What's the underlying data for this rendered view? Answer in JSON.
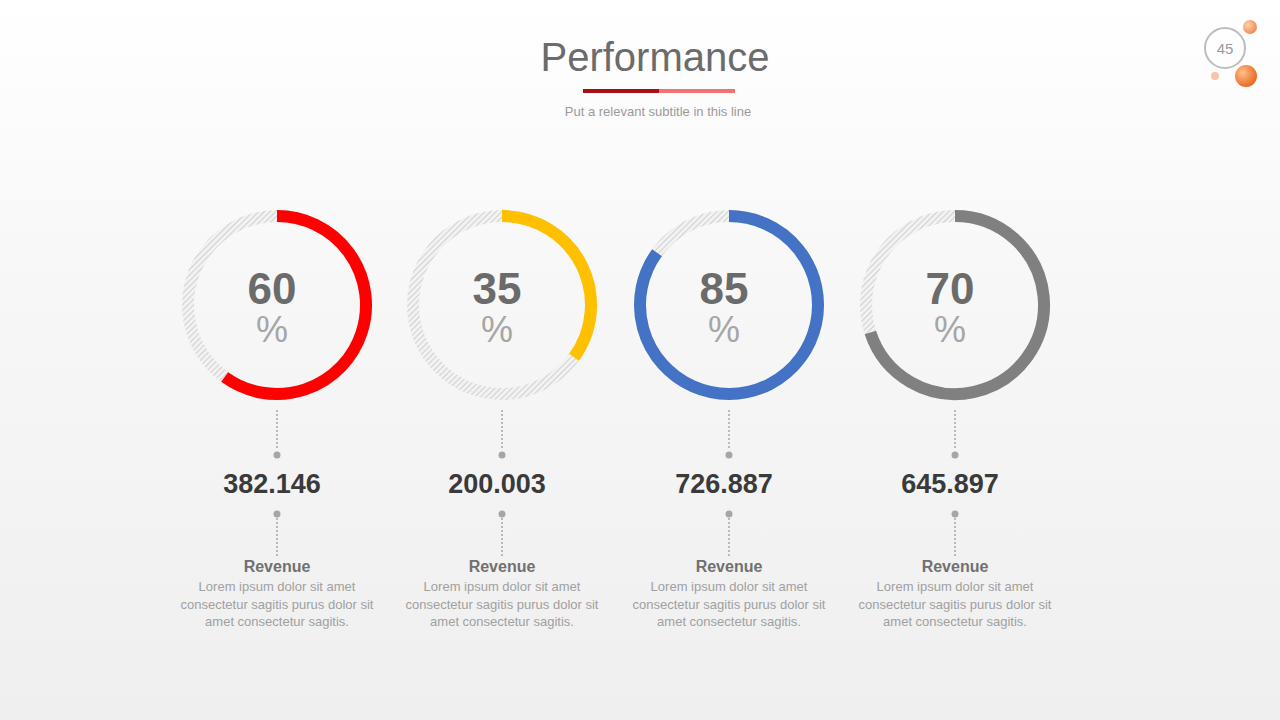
{
  "header": {
    "title": "Performance",
    "subtitle": "Put a relevant subtitle in this line",
    "page": "45"
  },
  "chart_data": [
    {
      "type": "donut",
      "values": [
        60
      ],
      "value_labels": [
        "60%"
      ],
      "color": "#ff0000",
      "ylim": [
        0,
        100
      ],
      "data_labels": true,
      "annotations": [
        "382.146"
      ],
      "title": "Revenue",
      "subtitle": "Lorem ipsum dolor sit amet consectetur sagitis purus dolor sit amet consectetur sagitis."
    },
    {
      "type": "donut",
      "values": [
        35
      ],
      "value_labels": [
        "35%"
      ],
      "color": "#ffc000",
      "ylim": [
        0,
        100
      ],
      "data_labels": true,
      "annotations": [
        "200.003"
      ],
      "title": "Revenue",
      "subtitle": "Lorem ipsum dolor sit amet consectetur sagitis purus dolor sit amet consectetur sagitis."
    },
    {
      "type": "donut",
      "values": [
        85
      ],
      "value_labels": [
        "85%"
      ],
      "color": "#4472c4",
      "ylim": [
        0,
        100
      ],
      "data_labels": true,
      "annotations": [
        "726.887"
      ],
      "title": "Revenue",
      "subtitle": "Lorem ipsum dolor sit amet consectetur sagitis purus dolor sit amet consectetur sagitis."
    },
    {
      "type": "donut",
      "values": [
        70
      ],
      "value_labels": [
        "70%"
      ],
      "color": "#808080",
      "ylim": [
        0,
        100
      ],
      "data_labels": true,
      "annotations": [
        "645.897"
      ],
      "title": "Revenue",
      "subtitle": "Lorem ipsum dolor sit amet consectetur sagitis purus dolor sit amet consectetur sagitis."
    }
  ]
}
